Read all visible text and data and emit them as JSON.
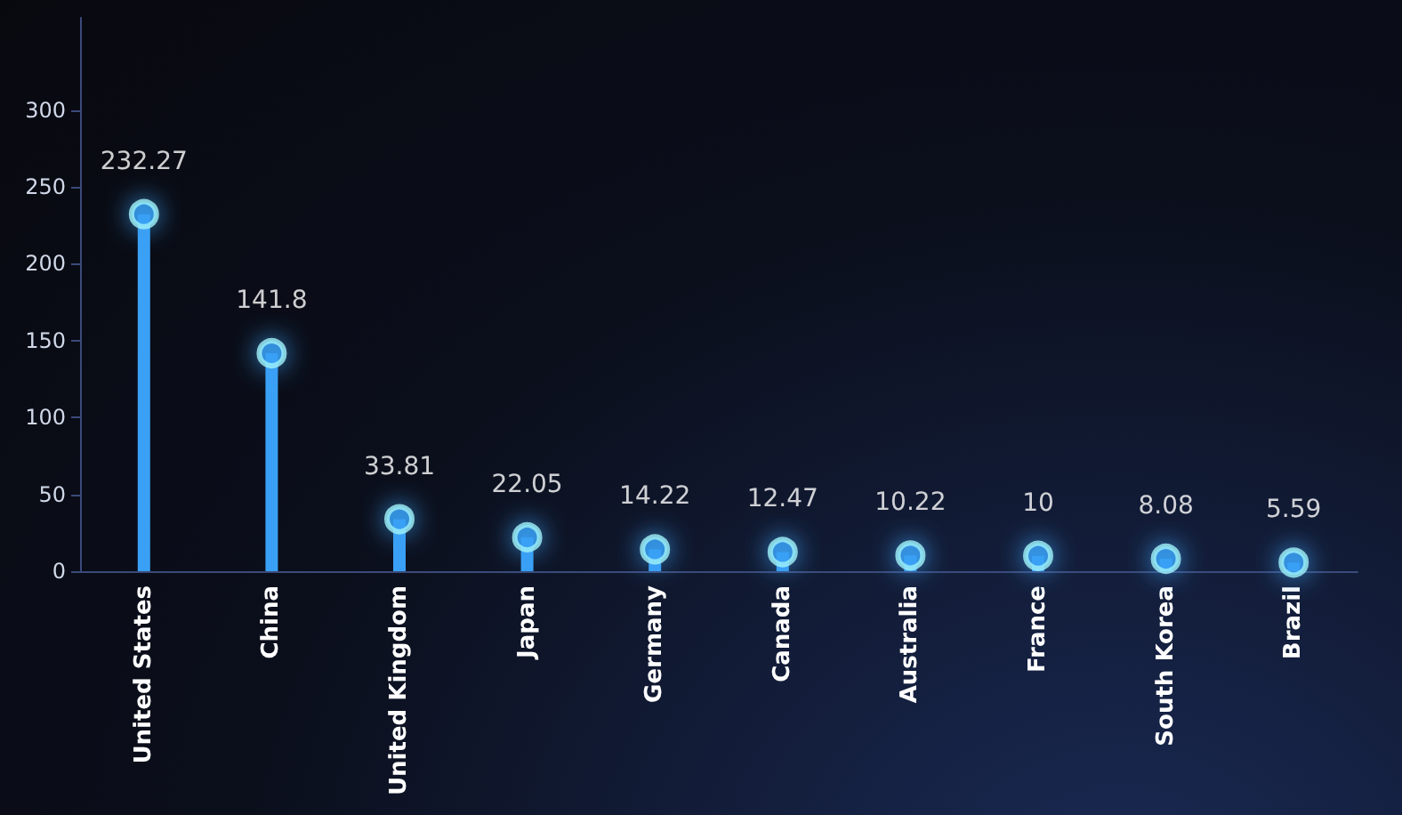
{
  "chart_data": {
    "type": "lollipop",
    "categories": [
      "United States",
      "China",
      "United Kingdom",
      "Japan",
      "Germany",
      "Canada",
      "Australia",
      "France",
      "South Korea",
      "Brazil"
    ],
    "values": [
      232.27,
      141.8,
      33.81,
      22.05,
      14.22,
      12.47,
      10.22,
      10,
      8.08,
      5.59
    ],
    "color": "#3aa0f5",
    "ylim": [
      0,
      360
    ],
    "yticks": [
      0,
      50,
      100,
      150,
      200,
      250,
      300
    ],
    "grid": false,
    "data_labels": true,
    "marker": "circle"
  }
}
